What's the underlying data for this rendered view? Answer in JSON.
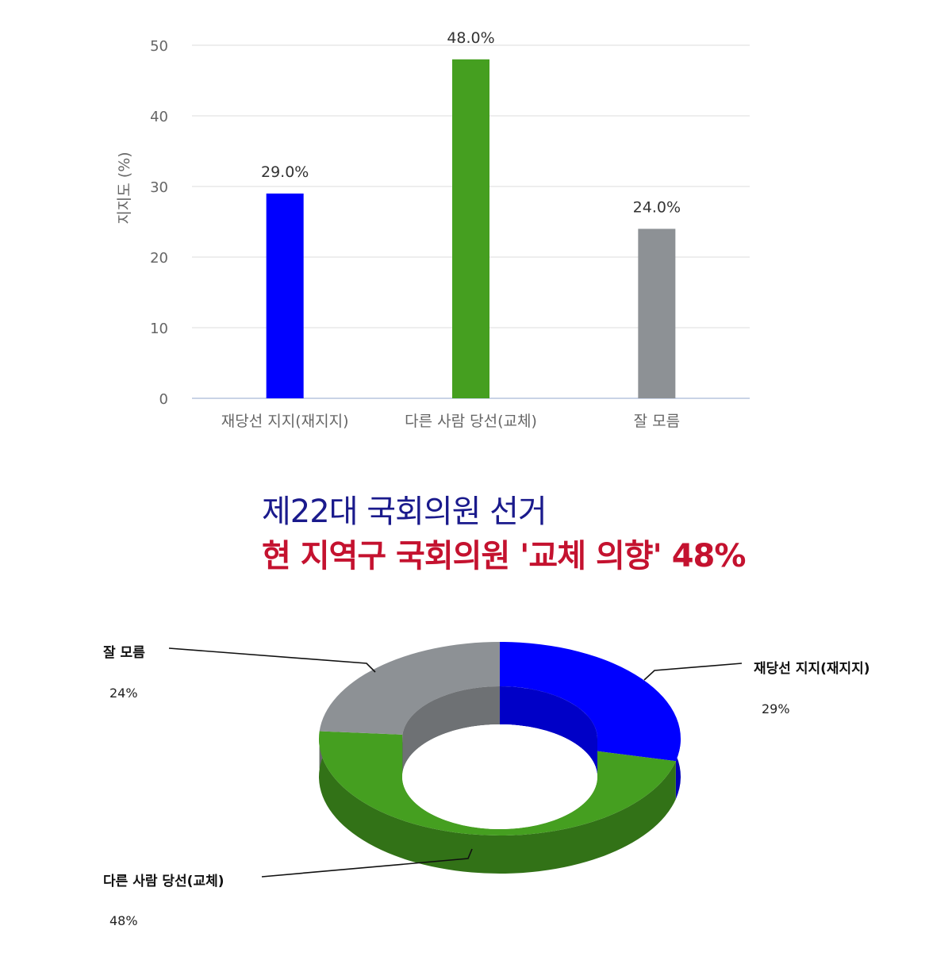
{
  "chart_data": [
    {
      "type": "bar",
      "categories": [
        "재당선 지지(재지지)",
        "다른 사람 당선(교체)",
        "잘 모름"
      ],
      "values": [
        29.0,
        48.0,
        24.0
      ],
      "value_labels": [
        "29.0%",
        "48.0%",
        "24.0%"
      ],
      "colors": [
        "#0000ff",
        "#459f20",
        "#8d9195"
      ],
      "ylabel": "지지도 (%)",
      "ylim": [
        0,
        50
      ],
      "yticks": [
        0,
        10,
        20,
        30,
        40,
        50
      ],
      "grid": true
    },
    {
      "type": "pie",
      "style": "3d-donut",
      "categories": [
        "재당선 지지(재지지)",
        "다른 사람 당선(교체)",
        "잘 모름"
      ],
      "values": [
        29,
        48,
        24
      ],
      "value_labels": [
        "29%",
        "48%",
        "24%"
      ],
      "colors": [
        "#0000ff",
        "#459f20",
        "#8d9195"
      ]
    }
  ],
  "headline": {
    "line1": "제22대 국회의원 선거",
    "line2": "현 지역구 국회의원 '교체 의향' 48%"
  }
}
